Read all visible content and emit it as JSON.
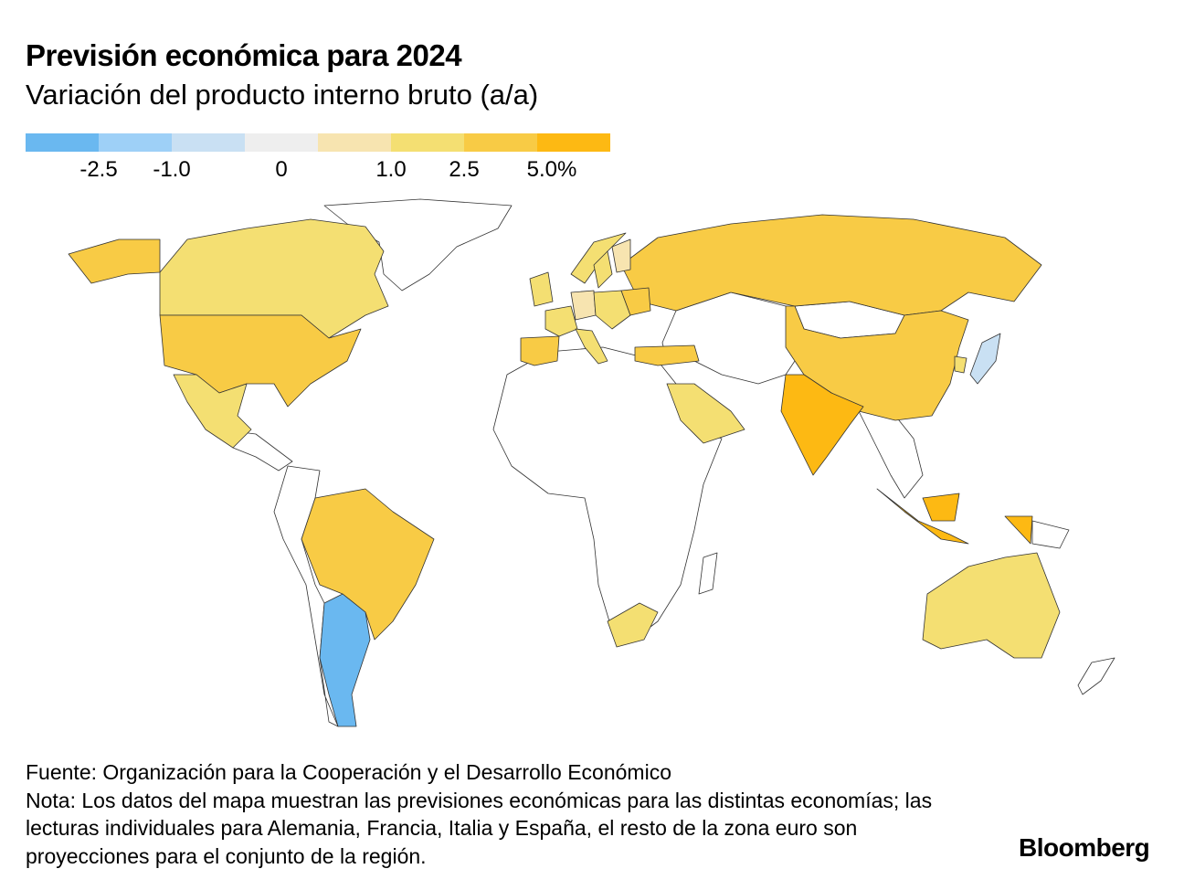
{
  "header": {
    "title": "Previsión económica para 2024",
    "subtitle": "Variación del producto interno bruto (a/a)"
  },
  "legend": {
    "colors": [
      "#6ab8f0",
      "#9ed0f7",
      "#c9e0f3",
      "#eeeeee",
      "#f7e4b0",
      "#f4df72",
      "#f8cb45",
      "#fdb913"
    ],
    "tick_labels": [
      "-2.5",
      "-1.0",
      "0",
      "1.0",
      "2.5",
      "5.0%"
    ]
  },
  "map": {
    "no_data_color": "#ffffff",
    "countries": [
      {
        "name": "Canada",
        "bin": 5
      },
      {
        "name": "United States",
        "bin": 6
      },
      {
        "name": "Mexico",
        "bin": 5
      },
      {
        "name": "Brazil",
        "bin": 6
      },
      {
        "name": "Argentina",
        "bin": 0
      },
      {
        "name": "Russia",
        "bin": 6
      },
      {
        "name": "China",
        "bin": 6
      },
      {
        "name": "India",
        "bin": 7
      },
      {
        "name": "Indonesia",
        "bin": 7
      },
      {
        "name": "Australia",
        "bin": 5
      },
      {
        "name": "Japan",
        "bin": 2
      },
      {
        "name": "South Korea",
        "bin": 5
      },
      {
        "name": "Saudi Arabia",
        "bin": 5
      },
      {
        "name": "South Africa",
        "bin": 5
      },
      {
        "name": "Turkey",
        "bin": 6
      },
      {
        "name": "Spain",
        "bin": 6
      },
      {
        "name": "France",
        "bin": 5
      },
      {
        "name": "Germany",
        "bin": 4
      },
      {
        "name": "Italy",
        "bin": 5
      },
      {
        "name": "Euro area",
        "bin": 5
      },
      {
        "name": "United Kingdom",
        "bin": 5
      },
      {
        "name": "Norway",
        "bin": 5
      },
      {
        "name": "Sweden",
        "bin": 5
      },
      {
        "name": "Finland",
        "bin": 4
      },
      {
        "name": "Poland",
        "bin": 6
      }
    ]
  },
  "footer": {
    "source": "Fuente: Organización para la Cooperación y el Desarrollo Económico",
    "note": "Nota: Los datos del mapa muestran las previsiones económicas para las distintas economías; las lecturas individuales para Alemania, Francia, Italia y España, el resto de la zona euro son proyecciones para el conjunto de la región.",
    "brand": "Bloomberg"
  }
}
